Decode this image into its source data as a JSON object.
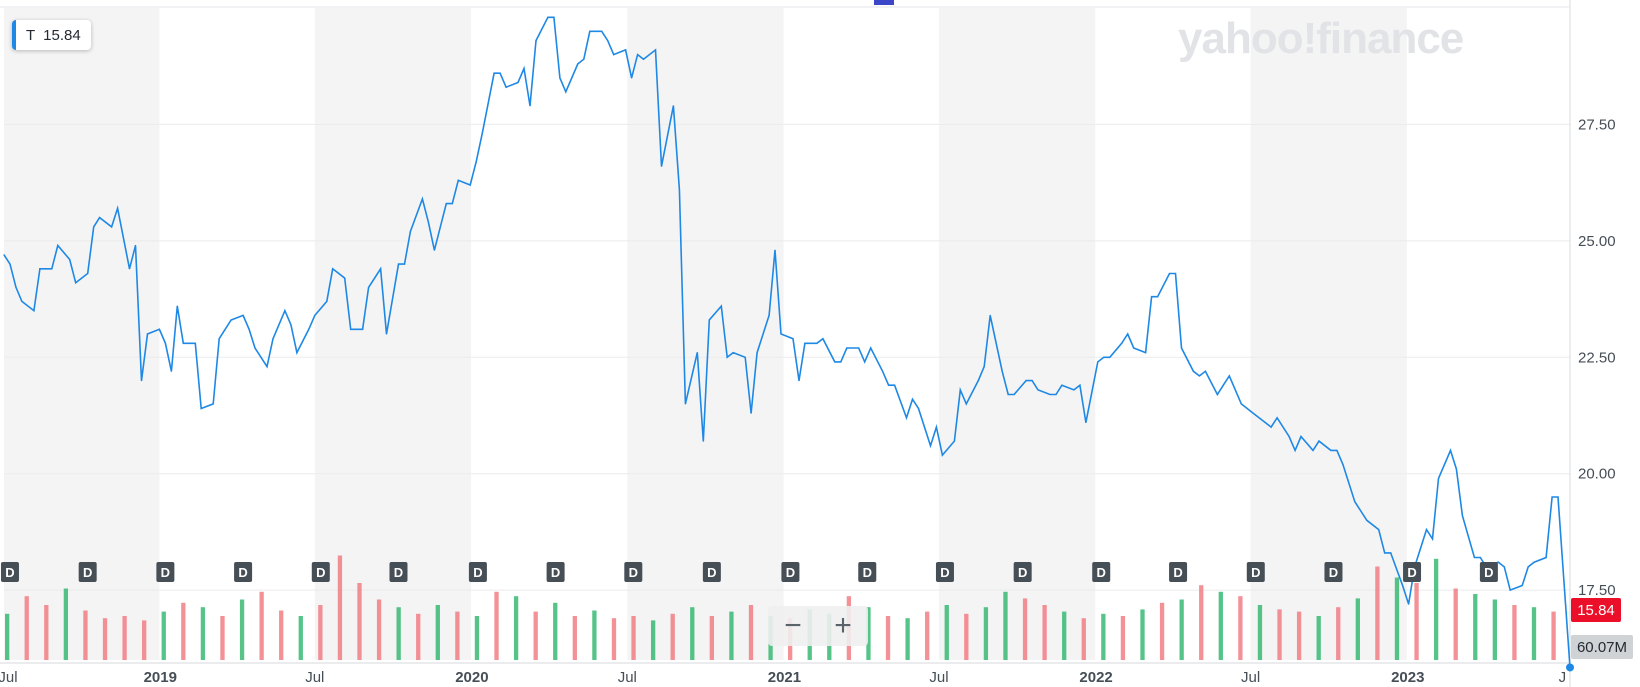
{
  "ticker": {
    "symbol": "T",
    "price": "15.84"
  },
  "logo": "yahoo!finance",
  "zoom": {
    "minus": "−",
    "plus": "+"
  },
  "price_tag": "15.84",
  "volume_tag": "60.07M",
  "colors": {
    "line": "#1e88e5",
    "band": "#f4f4f4",
    "grid": "#ebebeb",
    "vol_up": "#2cb56b",
    "vol_down": "#f0757d",
    "price_tag": "#eb0f29"
  },
  "chart_data": {
    "type": "line",
    "title": "",
    "xlabel": "",
    "ylabel": "",
    "ylim": [
      16.0,
      30.0
    ],
    "y_ticks": [
      "27.50",
      "25.00",
      "22.50",
      "20.00",
      "17.50"
    ],
    "x_ticks": [
      "Jul",
      "2019",
      "Jul",
      "2020",
      "Jul",
      "2021",
      "Jul",
      "2022",
      "Jul",
      "2023",
      "J"
    ],
    "x_range": [
      "2018-07-02",
      "2023-07-10"
    ],
    "bands": [
      [
        "2018-07-01",
        "2018-12-31"
      ],
      [
        "2019-07-01",
        "2019-12-31"
      ],
      [
        "2020-07-01",
        "2020-12-31"
      ],
      [
        "2021-07-01",
        "2021-12-31"
      ],
      [
        "2022-07-01",
        "2022-12-31"
      ]
    ],
    "series": [
      {
        "points": [
          [
            "2018-07-02",
            24.7
          ],
          [
            "2018-07-09",
            24.5
          ],
          [
            "2018-07-16",
            24.0
          ],
          [
            "2018-07-23",
            23.7
          ],
          [
            "2018-08-06",
            23.5
          ],
          [
            "2018-08-13",
            24.4
          ],
          [
            "2018-08-27",
            24.4
          ],
          [
            "2018-09-03",
            24.9
          ],
          [
            "2018-09-17",
            24.6
          ],
          [
            "2018-09-24",
            24.1
          ],
          [
            "2018-10-08",
            24.3
          ],
          [
            "2018-10-15",
            25.3
          ],
          [
            "2018-10-22",
            25.5
          ],
          [
            "2018-11-05",
            25.3
          ],
          [
            "2018-11-12",
            25.7
          ],
          [
            "2018-11-26",
            24.4
          ],
          [
            "2018-12-03",
            24.9
          ],
          [
            "2018-12-10",
            22.0
          ],
          [
            "2018-12-17",
            23.0
          ],
          [
            "2018-12-31",
            23.1
          ],
          [
            "2019-01-07",
            22.8
          ],
          [
            "2019-01-14",
            22.2
          ],
          [
            "2019-01-21",
            23.6
          ],
          [
            "2019-01-28",
            22.8
          ],
          [
            "2019-02-11",
            22.8
          ],
          [
            "2019-02-18",
            21.4
          ],
          [
            "2019-03-04",
            21.5
          ],
          [
            "2019-03-11",
            22.9
          ],
          [
            "2019-03-25",
            23.3
          ],
          [
            "2019-04-08",
            23.4
          ],
          [
            "2019-04-15",
            23.1
          ],
          [
            "2019-04-22",
            22.7
          ],
          [
            "2019-05-06",
            22.3
          ],
          [
            "2019-05-13",
            22.9
          ],
          [
            "2019-05-27",
            23.5
          ],
          [
            "2019-06-03",
            23.2
          ],
          [
            "2019-06-10",
            22.6
          ],
          [
            "2019-06-24",
            23.1
          ],
          [
            "2019-07-01",
            23.4
          ],
          [
            "2019-07-15",
            23.7
          ],
          [
            "2019-07-22",
            24.4
          ],
          [
            "2019-08-05",
            24.2
          ],
          [
            "2019-08-12",
            23.1
          ],
          [
            "2019-08-26",
            23.1
          ],
          [
            "2019-09-02",
            24.0
          ],
          [
            "2019-09-16",
            24.4
          ],
          [
            "2019-09-23",
            23.0
          ],
          [
            "2019-10-07",
            24.5
          ],
          [
            "2019-10-14",
            24.5
          ],
          [
            "2019-10-21",
            25.2
          ],
          [
            "2019-11-04",
            25.9
          ],
          [
            "2019-11-11",
            25.4
          ],
          [
            "2019-11-18",
            24.8
          ],
          [
            "2019-12-02",
            25.8
          ],
          [
            "2019-12-09",
            25.8
          ],
          [
            "2019-12-16",
            26.3
          ],
          [
            "2019-12-30",
            26.2
          ],
          [
            "2020-01-06",
            26.7
          ],
          [
            "2020-01-13",
            27.3
          ],
          [
            "2020-01-27",
            28.6
          ],
          [
            "2020-02-03",
            28.6
          ],
          [
            "2020-02-10",
            28.3
          ],
          [
            "2020-02-24",
            28.4
          ],
          [
            "2020-03-02",
            28.7
          ],
          [
            "2020-03-09",
            27.9
          ],
          [
            "2020-03-16",
            29.3
          ],
          [
            "2020-03-30",
            29.8
          ],
          [
            "2020-04-06",
            29.8
          ],
          [
            "2020-04-13",
            28.5
          ],
          [
            "2020-04-20",
            28.2
          ],
          [
            "2020-05-04",
            28.8
          ],
          [
            "2020-05-11",
            28.9
          ],
          [
            "2020-05-18",
            29.5
          ],
          [
            "2020-06-01",
            29.5
          ],
          [
            "2020-06-08",
            29.3
          ],
          [
            "2020-06-15",
            29.0
          ],
          [
            "2020-06-29",
            29.1
          ],
          [
            "2020-07-06",
            28.5
          ],
          [
            "2020-07-13",
            29.0
          ],
          [
            "2020-07-20",
            28.9
          ],
          [
            "2020-08-03",
            29.1
          ],
          [
            "2020-08-10",
            26.6
          ],
          [
            "2020-08-24",
            27.9
          ],
          [
            "2020-08-31",
            26.1
          ],
          [
            "2020-09-07",
            21.5
          ],
          [
            "2020-09-21",
            22.6
          ],
          [
            "2020-09-28",
            20.7
          ],
          [
            "2020-10-05",
            23.3
          ],
          [
            "2020-10-19",
            23.6
          ],
          [
            "2020-10-26",
            22.5
          ],
          [
            "2020-11-02",
            22.6
          ],
          [
            "2020-11-16",
            22.5
          ],
          [
            "2020-11-23",
            21.3
          ],
          [
            "2020-11-30",
            22.6
          ],
          [
            "2020-12-14",
            23.4
          ],
          [
            "2020-12-21",
            24.8
          ],
          [
            "2020-12-28",
            23.0
          ],
          [
            "2021-01-11",
            22.9
          ],
          [
            "2021-01-18",
            22.0
          ],
          [
            "2021-01-25",
            22.8
          ],
          [
            "2021-02-08",
            22.8
          ],
          [
            "2021-02-15",
            22.9
          ],
          [
            "2021-03-01",
            22.4
          ],
          [
            "2021-03-08",
            22.4
          ],
          [
            "2021-03-15",
            22.7
          ],
          [
            "2021-03-29",
            22.7
          ],
          [
            "2021-04-05",
            22.4
          ],
          [
            "2021-04-12",
            22.7
          ],
          [
            "2021-04-26",
            22.2
          ],
          [
            "2021-05-03",
            21.9
          ],
          [
            "2021-05-10",
            21.9
          ],
          [
            "2021-05-24",
            21.2
          ],
          [
            "2021-05-31",
            21.6
          ],
          [
            "2021-06-07",
            21.4
          ],
          [
            "2021-06-21",
            20.6
          ],
          [
            "2021-06-28",
            21.0
          ],
          [
            "2021-07-05",
            20.4
          ],
          [
            "2021-07-19",
            20.7
          ],
          [
            "2021-07-26",
            21.8
          ],
          [
            "2021-08-02",
            21.5
          ],
          [
            "2021-08-16",
            22.0
          ],
          [
            "2021-08-23",
            22.3
          ],
          [
            "2021-08-30",
            23.4
          ],
          [
            "2021-09-13",
            22.2
          ],
          [
            "2021-09-20",
            21.7
          ],
          [
            "2021-09-27",
            21.7
          ],
          [
            "2021-10-11",
            22.0
          ],
          [
            "2021-10-18",
            22.0
          ],
          [
            "2021-10-25",
            21.8
          ],
          [
            "2021-11-08",
            21.7
          ],
          [
            "2021-11-15",
            21.7
          ],
          [
            "2021-11-22",
            21.9
          ],
          [
            "2021-12-06",
            21.8
          ],
          [
            "2021-12-13",
            21.9
          ],
          [
            "2021-12-20",
            21.1
          ],
          [
            "2022-01-03",
            22.4
          ],
          [
            "2022-01-10",
            22.5
          ],
          [
            "2022-01-17",
            22.5
          ],
          [
            "2022-01-31",
            22.8
          ],
          [
            "2022-02-07",
            23.0
          ],
          [
            "2022-02-14",
            22.7
          ],
          [
            "2022-02-28",
            22.6
          ],
          [
            "2022-03-07",
            23.8
          ],
          [
            "2022-03-14",
            23.8
          ],
          [
            "2022-03-28",
            24.3
          ],
          [
            "2022-04-04",
            24.3
          ],
          [
            "2022-04-11",
            22.7
          ],
          [
            "2022-04-25",
            22.2
          ],
          [
            "2022-05-02",
            22.1
          ],
          [
            "2022-05-09",
            22.2
          ],
          [
            "2022-05-23",
            21.7
          ],
          [
            "2022-05-30",
            21.9
          ],
          [
            "2022-06-06",
            22.1
          ],
          [
            "2022-06-20",
            21.5
          ],
          [
            "2022-06-27",
            21.4
          ],
          [
            "2022-07-04",
            21.3
          ],
          [
            "2022-07-18",
            21.1
          ],
          [
            "2022-07-25",
            21.0
          ],
          [
            "2022-08-01",
            21.2
          ],
          [
            "2022-08-15",
            20.8
          ],
          [
            "2022-08-22",
            20.5
          ],
          [
            "2022-08-29",
            20.8
          ],
          [
            "2022-09-12",
            20.5
          ],
          [
            "2022-09-19",
            20.7
          ],
          [
            "2022-10-03",
            20.5
          ],
          [
            "2022-10-10",
            20.5
          ],
          [
            "2022-10-17",
            20.2
          ],
          [
            "2022-10-31",
            19.4
          ],
          [
            "2022-11-07",
            19.2
          ],
          [
            "2022-11-14",
            19.0
          ],
          [
            "2022-11-28",
            18.8
          ],
          [
            "2022-12-05",
            18.3
          ],
          [
            "2022-12-12",
            18.3
          ],
          [
            "2022-12-26",
            17.6
          ],
          [
            "2023-01-02",
            17.2
          ],
          [
            "2023-01-09",
            18.0
          ],
          [
            "2023-01-23",
            18.8
          ],
          [
            "2023-01-30",
            18.6
          ],
          [
            "2023-02-06",
            19.9
          ],
          [
            "2023-02-20",
            20.5
          ],
          [
            "2023-02-27",
            20.1
          ],
          [
            "2023-03-06",
            19.1
          ],
          [
            "2023-03-20",
            18.2
          ],
          [
            "2023-03-27",
            18.2
          ],
          [
            "2023-04-03",
            18.0
          ],
          [
            "2023-04-17",
            18.1
          ],
          [
            "2023-04-24",
            18.0
          ],
          [
            "2023-05-01",
            17.5
          ],
          [
            "2023-05-15",
            17.6
          ],
          [
            "2023-05-22",
            18.0
          ],
          [
            "2023-05-29",
            18.1
          ],
          [
            "2023-06-12",
            18.2
          ],
          [
            "2023-06-19",
            19.5
          ],
          [
            "2023-06-26",
            19.5
          ],
          [
            "2023-07-10",
            15.84
          ]
        ]
      }
    ],
    "volume": {
      "last_value": "60.07M",
      "bars": [
        [
          0.42,
          "u"
        ],
        [
          0.58,
          "d"
        ],
        [
          0.5,
          "d"
        ],
        [
          0.65,
          "u"
        ],
        [
          0.45,
          "d"
        ],
        [
          0.38,
          "d"
        ],
        [
          0.4,
          "d"
        ],
        [
          0.36,
          "d"
        ],
        [
          0.44,
          "u"
        ],
        [
          0.52,
          "d"
        ],
        [
          0.48,
          "u"
        ],
        [
          0.4,
          "d"
        ],
        [
          0.55,
          "u"
        ],
        [
          0.62,
          "d"
        ],
        [
          0.45,
          "d"
        ],
        [
          0.4,
          "u"
        ],
        [
          0.5,
          "d"
        ],
        [
          0.95,
          "d"
        ],
        [
          0.7,
          "d"
        ],
        [
          0.55,
          "d"
        ],
        [
          0.48,
          "u"
        ],
        [
          0.42,
          "d"
        ],
        [
          0.5,
          "u"
        ],
        [
          0.44,
          "d"
        ],
        [
          0.4,
          "u"
        ],
        [
          0.62,
          "d"
        ],
        [
          0.58,
          "u"
        ],
        [
          0.44,
          "d"
        ],
        [
          0.52,
          "u"
        ],
        [
          0.4,
          "d"
        ],
        [
          0.45,
          "u"
        ],
        [
          0.38,
          "d"
        ],
        [
          0.4,
          "d"
        ],
        [
          0.36,
          "u"
        ],
        [
          0.42,
          "d"
        ],
        [
          0.48,
          "u"
        ],
        [
          0.4,
          "d"
        ],
        [
          0.44,
          "u"
        ],
        [
          0.5,
          "d"
        ],
        [
          0.4,
          "u"
        ],
        [
          0.38,
          "d"
        ],
        [
          0.46,
          "u"
        ],
        [
          0.42,
          "u"
        ],
        [
          0.58,
          "d"
        ],
        [
          0.48,
          "u"
        ],
        [
          0.4,
          "d"
        ],
        [
          0.38,
          "u"
        ],
        [
          0.44,
          "d"
        ],
        [
          0.5,
          "u"
        ],
        [
          0.42,
          "d"
        ],
        [
          0.48,
          "u"
        ],
        [
          0.62,
          "u"
        ],
        [
          0.56,
          "d"
        ],
        [
          0.5,
          "d"
        ],
        [
          0.44,
          "u"
        ],
        [
          0.38,
          "d"
        ],
        [
          0.42,
          "u"
        ],
        [
          0.4,
          "d"
        ],
        [
          0.46,
          "u"
        ],
        [
          0.52,
          "d"
        ],
        [
          0.55,
          "u"
        ],
        [
          0.68,
          "d"
        ],
        [
          0.62,
          "u"
        ],
        [
          0.58,
          "d"
        ],
        [
          0.5,
          "u"
        ],
        [
          0.46,
          "d"
        ],
        [
          0.44,
          "d"
        ],
        [
          0.4,
          "u"
        ],
        [
          0.48,
          "d"
        ],
        [
          0.56,
          "u"
        ],
        [
          0.85,
          "d"
        ],
        [
          0.75,
          "u"
        ],
        [
          0.7,
          "d"
        ],
        [
          0.92,
          "u"
        ],
        [
          0.65,
          "d"
        ],
        [
          0.6,
          "u"
        ],
        [
          0.55,
          "u"
        ],
        [
          0.5,
          "d"
        ],
        [
          0.48,
          "u"
        ],
        [
          0.44,
          "d"
        ]
      ]
    },
    "dividend_markers": [
      "2018-07-09",
      "2018-10-08",
      "2019-01-07",
      "2019-04-08",
      "2019-07-08",
      "2019-10-07",
      "2020-01-08",
      "2020-04-08",
      "2020-07-08",
      "2020-10-08",
      "2021-01-08",
      "2021-04-08",
      "2021-07-08",
      "2021-10-07",
      "2022-01-07",
      "2022-04-07",
      "2022-07-07",
      "2022-10-06",
      "2023-01-06",
      "2023-04-06"
    ],
    "dividend_label": "D"
  }
}
